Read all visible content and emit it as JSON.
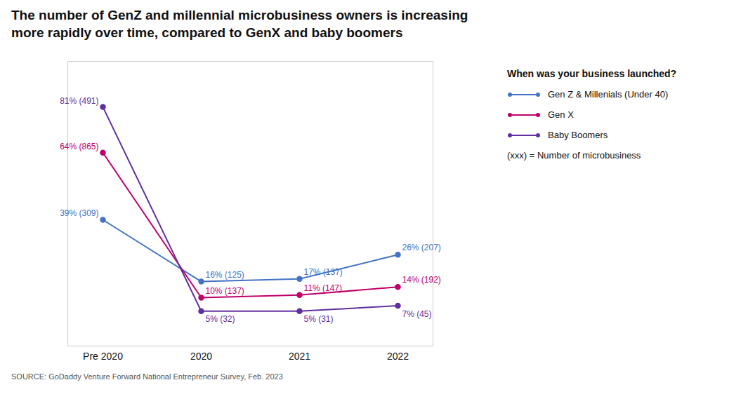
{
  "chart_data": {
    "type": "line",
    "title": "The number of GenZ and millennial microbusiness owners is increasing\nmore rapidly over time, compared to GenX and baby boomers",
    "categories": [
      "Pre 2020",
      "2020",
      "2021",
      "2022"
    ],
    "series": [
      {
        "name": "Gen Z & Millenials (Under 40)",
        "color": "#4472C4",
        "marker": "circle",
        "values": [
          39,
          16,
          17,
          26
        ],
        "value_labels": [
          "39% (309)",
          "16% (125)",
          "17% (137)",
          "26% (207)"
        ]
      },
      {
        "name": "Gen X",
        "color": "#C0006A",
        "marker": "circle",
        "values": [
          64,
          10,
          11,
          14
        ],
        "value_labels": [
          "64% (865)",
          "10% (137)",
          "11% (147)",
          "14% (192)"
        ]
      },
      {
        "name": "Baby Boomers",
        "color": "#6030A0",
        "marker": "circle",
        "values": [
          81,
          5,
          5,
          7
        ],
        "value_labels": [
          "81% (491)",
          "5% (32)",
          "5% (31)",
          "7% (45)"
        ]
      }
    ],
    "ylim": [
      -8,
      98
    ],
    "tick_labels": "x",
    "grid": false,
    "data_labels": true,
    "legend": "right",
    "legend_title": "When was your business launched?",
    "annotations": [
      "(xxx) = Number of microbusiness"
    ],
    "source": "SOURCE: GoDaddy Venture Forward National Entrepreneur Survey, Feb. 2023"
  }
}
